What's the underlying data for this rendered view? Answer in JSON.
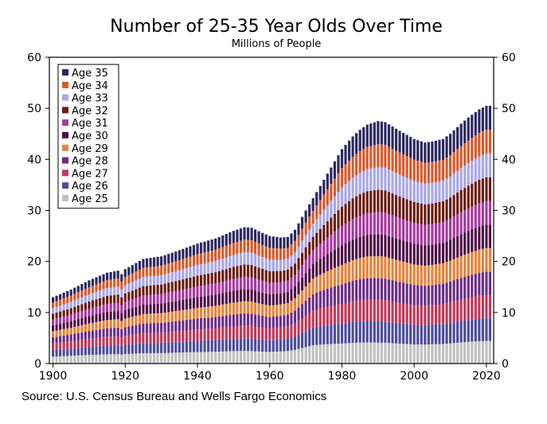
{
  "chart_data": {
    "type": "bar",
    "stacked": true,
    "title": "Number of 25-35 Year Olds Over Time",
    "subtitle": "Millions of People",
    "source": "Source: U.S. Census Bureau and Wells Fargo Economics",
    "x_ticks": [
      "1900",
      "1920",
      "1940",
      "1960",
      "1980",
      "2000",
      "2020"
    ],
    "y_ticks": [
      "0",
      "10",
      "20",
      "30",
      "40",
      "50",
      "60"
    ],
    "xlim": [
      1899,
      2022
    ],
    "ylim": [
      0,
      60
    ],
    "legend_position": "top-left",
    "legend_order": [
      "Age 35",
      "Age 34",
      "Age 33",
      "Age 32",
      "Age 31",
      "Age 30",
      "Age 29",
      "Age 28",
      "Age 27",
      "Age 26",
      "Age 25"
    ],
    "bar_width_years": 0.7,
    "totals_knots": {
      "x": [
        1900,
        1905,
        1910,
        1915,
        1918,
        1919,
        1920,
        1925,
        1930,
        1935,
        1940,
        1945,
        1950,
        1953,
        1955,
        1958,
        1960,
        1963,
        1965,
        1967,
        1970,
        1975,
        1980,
        1983,
        1985,
        1987,
        1990,
        1992,
        1995,
        2000,
        2003,
        2005,
        2008,
        2010,
        2013,
        2015,
        2018,
        2020,
        2021
      ],
      "values": [
        13,
        14.5,
        16.3,
        17.8,
        18.2,
        17.5,
        18.5,
        20.5,
        21,
        22.2,
        23.5,
        24.5,
        26,
        26.7,
        26.6,
        25.6,
        25,
        24.7,
        24.8,
        26.2,
        30,
        36,
        42,
        44.5,
        45.8,
        46.8,
        47.5,
        47.3,
        46,
        44,
        43.3,
        43.5,
        44,
        45,
        47,
        48.2,
        49.8,
        50.5,
        50.5
      ]
    },
    "series": [
      {
        "name": "Age 25",
        "color": "#c0c0c0",
        "share_knots": {
          "x": [
            1900,
            1960,
            1972,
            1980,
            1990,
            2000,
            2010,
            2021
          ],
          "values": [
            0.105,
            0.092,
            0.112,
            0.093,
            0.087,
            0.085,
            0.088,
            0.088
          ]
        }
      },
      {
        "name": "Age 26",
        "color": "#4c4c9a",
        "share_knots": {
          "x": [
            1900,
            1960,
            1972,
            1980,
            1990,
            2000,
            2010,
            2021
          ],
          "values": [
            0.1,
            0.093,
            0.108,
            0.093,
            0.089,
            0.087,
            0.089,
            0.089
          ]
        }
      },
      {
        "name": "Age 27",
        "color": "#c0395a",
        "share_knots": {
          "x": [
            1900,
            1960,
            1972,
            1980,
            1990,
            2000,
            2010,
            2021
          ],
          "values": [
            0.097,
            0.092,
            0.104,
            0.092,
            0.089,
            0.088,
            0.09,
            0.09
          ]
        }
      },
      {
        "name": "Age 28",
        "color": "#6b2d86",
        "share_knots": {
          "x": [
            1900,
            1960,
            1972,
            1980,
            1990,
            2000,
            2010,
            2021
          ],
          "values": [
            0.094,
            0.091,
            0.1,
            0.091,
            0.09,
            0.09,
            0.09,
            0.09
          ]
        }
      },
      {
        "name": "Age 29",
        "color": "#e8823a",
        "share_knots": {
          "x": [
            1900,
            1960,
            1972,
            1980,
            1990,
            2000,
            2010,
            2021
          ],
          "values": [
            0.091,
            0.09,
            0.094,
            0.091,
            0.091,
            0.091,
            0.091,
            0.091
          ]
        }
      },
      {
        "name": "Age 30",
        "color": "#4e1147",
        "share_knots": {
          "x": [
            1900,
            1960,
            1972,
            1980,
            1990,
            2000,
            2010,
            2021
          ],
          "values": [
            0.09,
            0.09,
            0.089,
            0.091,
            0.091,
            0.092,
            0.091,
            0.091
          ]
        }
      },
      {
        "name": "Age 31",
        "color": "#a6399f",
        "share_knots": {
          "x": [
            1900,
            1960,
            1972,
            1980,
            1990,
            2000,
            2010,
            2021
          ],
          "values": [
            0.088,
            0.091,
            0.085,
            0.09,
            0.092,
            0.093,
            0.092,
            0.092
          ]
        }
      },
      {
        "name": "Age 32",
        "color": "#6a1e12",
        "share_knots": {
          "x": [
            1900,
            1960,
            1972,
            1980,
            1990,
            2000,
            2010,
            2021
          ],
          "values": [
            0.086,
            0.092,
            0.082,
            0.091,
            0.093,
            0.093,
            0.092,
            0.092
          ]
        }
      },
      {
        "name": "Age 33",
        "color": "#a9a7e8",
        "share_knots": {
          "x": [
            1900,
            1960,
            1972,
            1980,
            1990,
            2000,
            2010,
            2021
          ],
          "values": [
            0.085,
            0.092,
            0.08,
            0.09,
            0.094,
            0.094,
            0.092,
            0.092
          ]
        }
      },
      {
        "name": "Age 34",
        "color": "#d85a2c",
        "share_knots": {
          "x": [
            1900,
            1960,
            1972,
            1980,
            1990,
            2000,
            2010,
            2021
          ],
          "values": [
            0.084,
            0.093,
            0.079,
            0.09,
            0.095,
            0.095,
            0.092,
            0.092
          ]
        }
      },
      {
        "name": "Age 35",
        "color": "#2c2860",
        "share_knots": {
          "x": [
            1900,
            1960,
            1972,
            1980,
            1990,
            2000,
            2010,
            2021
          ],
          "values": [
            0.08,
            0.094,
            0.077,
            0.088,
            0.096,
            0.092,
            0.093,
            0.093
          ]
        }
      }
    ]
  }
}
